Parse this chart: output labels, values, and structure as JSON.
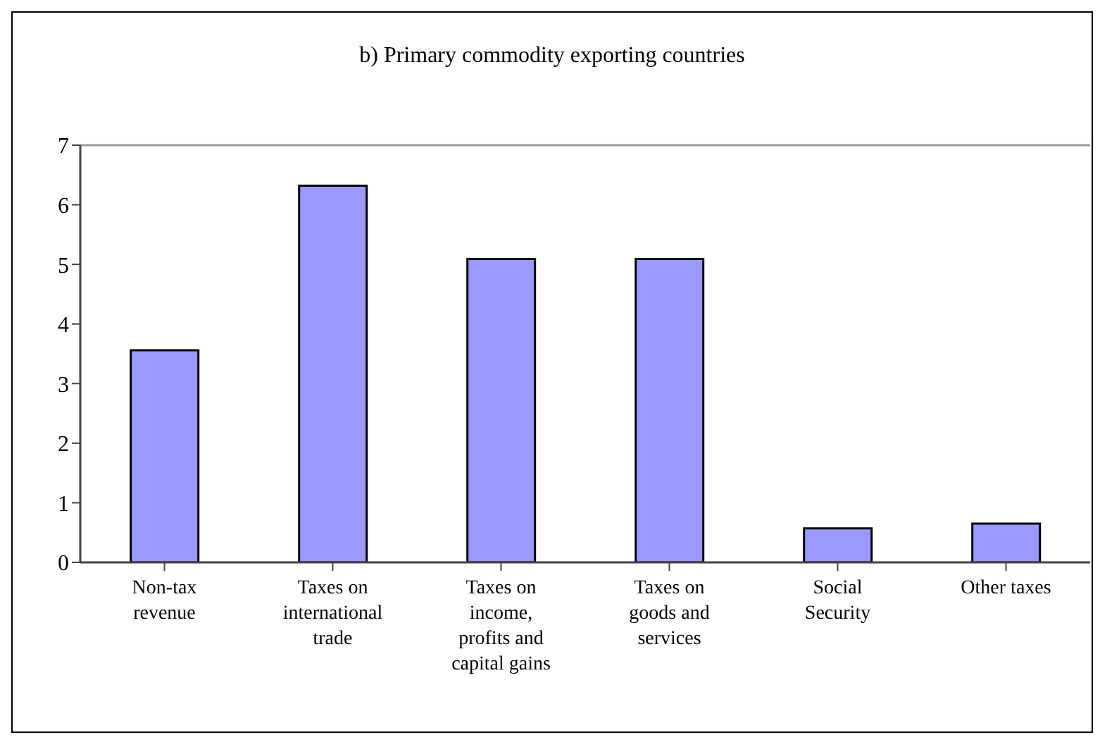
{
  "chart_data": {
    "type": "bar",
    "title": "b) Primary commodity exporting countries",
    "categories": [
      "Non-tax revenue",
      "Taxes on international trade",
      "Taxes on income, profits and capital gains",
      "Taxes on goods and services",
      "Social Security",
      "Other taxes"
    ],
    "values": [
      3.56,
      6.32,
      5.09,
      5.09,
      0.57,
      0.65
    ],
    "color": "#9999ff",
    "ylim": [
      0,
      7
    ],
    "yticks": [
      0,
      1,
      2,
      3,
      4,
      5,
      6,
      7
    ],
    "grid": false
  }
}
